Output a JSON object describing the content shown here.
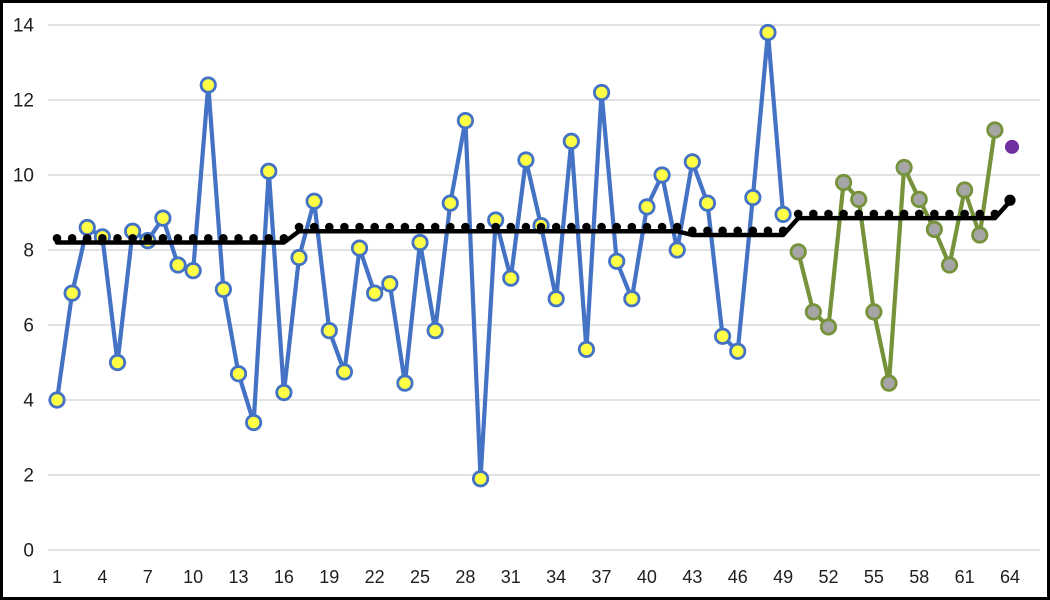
{
  "chart_meta": {
    "background": "#FFFFFF",
    "frame_border_color": "#000000",
    "gridline_color": "#D9D9D9",
    "axis_label_color": "#1F1F1F"
  },
  "chart_data": {
    "type": "line",
    "title": "",
    "xlabel": "",
    "ylabel": "",
    "xlim": [
      1,
      64
    ],
    "ylim": [
      0,
      14
    ],
    "grid": true,
    "legend": "none",
    "y_tick_values": [
      0,
      2,
      4,
      6,
      8,
      10,
      12,
      14
    ],
    "x_tick_values": [
      1,
      4,
      7,
      10,
      13,
      16,
      19,
      22,
      25,
      28,
      31,
      34,
      37,
      40,
      43,
      46,
      49,
      52,
      55,
      58,
      61,
      64
    ],
    "series": [
      {
        "name": "phase-1-blue-line-yellow-markers",
        "type": "line-markers",
        "x_start": 1,
        "line_color": "#4472C4",
        "marker_fill": "#FFFF45",
        "marker_stroke": "#4472C4",
        "values": [
          4.0,
          6.85,
          8.6,
          8.35,
          5.0,
          8.5,
          8.25,
          8.85,
          7.6,
          7.45,
          12.4,
          6.95,
          4.7,
          3.4,
          10.1,
          4.2,
          7.8,
          9.3,
          5.85,
          4.75,
          8.05,
          6.85,
          7.1,
          4.45,
          8.2,
          5.85,
          9.25,
          11.45,
          1.9,
          8.8,
          7.25,
          10.4,
          8.65,
          6.7,
          10.9,
          5.35,
          12.2,
          7.7,
          6.7,
          9.15,
          10.0,
          8.0,
          10.35,
          9.25,
          5.7,
          5.3,
          9.4,
          13.8,
          8.95
        ]
      },
      {
        "name": "phase-2-green-line-gray-markers",
        "type": "line-markers",
        "x_start": 50,
        "line_color": "#76933C",
        "marker_fill": "#A6A6A6",
        "marker_stroke": "#76933C",
        "values": [
          7.95,
          6.35,
          5.95,
          9.8,
          9.35,
          6.35,
          4.45,
          10.2,
          9.35,
          8.55,
          7.6,
          9.6,
          8.4,
          11.2
        ]
      },
      {
        "name": "stepped-mean-black-dotted-line",
        "type": "line-dots",
        "x_start": 1,
        "line_color": "#000000",
        "values": [
          8.2,
          8.2,
          8.2,
          8.2,
          8.2,
          8.2,
          8.2,
          8.2,
          8.2,
          8.2,
          8.2,
          8.2,
          8.2,
          8.2,
          8.2,
          8.2,
          8.5,
          8.5,
          8.5,
          8.5,
          8.5,
          8.5,
          8.5,
          8.5,
          8.5,
          8.5,
          8.5,
          8.5,
          8.5,
          8.5,
          8.5,
          8.5,
          8.5,
          8.5,
          8.5,
          8.5,
          8.5,
          8.5,
          8.5,
          8.5,
          8.5,
          8.5,
          8.4,
          8.4,
          8.4,
          8.4,
          8.4,
          8.4,
          8.4,
          8.85,
          8.85,
          8.85,
          8.85,
          8.85,
          8.85,
          8.85,
          8.85,
          8.85,
          8.85,
          8.85,
          8.85,
          8.85,
          8.85,
          9.3
        ]
      },
      {
        "name": "isolated-purple-point",
        "type": "point",
        "x_start": 64,
        "line_color": "#7030A0",
        "values": [
          10.75
        ]
      }
    ]
  }
}
